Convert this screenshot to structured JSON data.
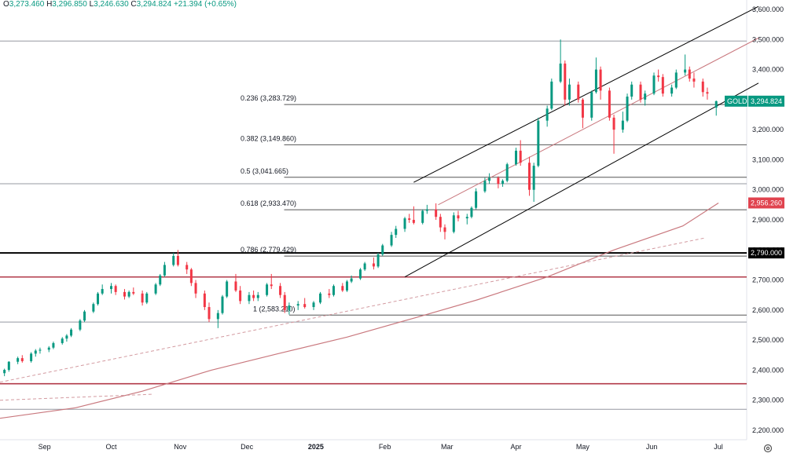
{
  "header": {
    "o_label": "O",
    "o_value": "3,273.460",
    "h_label": "H",
    "h_value": "3,296.850",
    "l_label": "L",
    "l_value": "3,246.630",
    "c_label": "C",
    "c_value": "3,294.824",
    "change": "+21.394 (+0.65%)"
  },
  "colors": {
    "up": "#089981",
    "down": "#f23645",
    "price_badge": "#089981",
    "ma_badge": "#e0434f",
    "level_badge": "#000000",
    "ma_line": "#c9787e",
    "support_line": "#b23a48",
    "grid_line": "#808080"
  },
  "chart_data": {
    "type": "candlestick",
    "symbol": "GOLD",
    "last_price": 3294.824,
    "last_price_label": "3,294.824",
    "ylim": [
      2180,
      3620
    ],
    "y_ticks": [
      2200,
      2300,
      2400,
      2500,
      2600,
      2700,
      2800,
      2900,
      3000,
      3100,
      3200,
      3300,
      3400,
      3500,
      3600
    ],
    "y_tick_labels": [
      "2,200.000",
      "2,300.000",
      "2,400.000",
      "2,500.000",
      "2,600.000",
      "2,700.000",
      "2,800.000",
      "2,900.000",
      "3,000.000",
      "3,100.000",
      "3,200.000",
      "3,300.000",
      "3,400.000",
      "3,500.000",
      "3,600.000"
    ],
    "x_labels": [
      {
        "date": "2024-09-01",
        "label": "Sep"
      },
      {
        "date": "2024-10-01",
        "label": "Oct"
      },
      {
        "date": "2024-11-01",
        "label": "Nov"
      },
      {
        "date": "2024-12-01",
        "label": "Dec"
      },
      {
        "date": "2025-01-01",
        "label": "2025"
      },
      {
        "date": "2025-02-01",
        "label": "Feb"
      },
      {
        "date": "2025-03-01",
        "label": "Mar"
      },
      {
        "date": "2025-04-01",
        "label": "Apr"
      },
      {
        "date": "2025-05-01",
        "label": "May"
      },
      {
        "date": "2025-06-01",
        "label": "Jun"
      },
      {
        "date": "2025-07-01",
        "label": "Jul"
      }
    ],
    "x_range": [
      "2024-08-12",
      "2025-07-19"
    ],
    "candles_ohlc": [
      [
        "2024-08-14",
        2390,
        2405,
        2380,
        2401
      ],
      [
        "2024-08-16",
        2401,
        2430,
        2395,
        2428
      ],
      [
        "2024-08-20",
        2428,
        2445,
        2420,
        2440
      ],
      [
        "2024-08-22",
        2440,
        2450,
        2425,
        2430
      ],
      [
        "2024-08-26",
        2430,
        2460,
        2425,
        2455
      ],
      [
        "2024-08-28",
        2455,
        2470,
        2445,
        2465
      ],
      [
        "2024-08-30",
        2465,
        2475,
        2455,
        2468
      ],
      [
        "2024-09-03",
        2468,
        2480,
        2460,
        2475
      ],
      [
        "2024-09-05",
        2475,
        2495,
        2470,
        2490
      ],
      [
        "2024-09-09",
        2490,
        2510,
        2485,
        2505
      ],
      [
        "2024-09-11",
        2505,
        2520,
        2495,
        2515
      ],
      [
        "2024-09-13",
        2515,
        2540,
        2510,
        2535
      ],
      [
        "2024-09-17",
        2535,
        2570,
        2530,
        2565
      ],
      [
        "2024-09-19",
        2565,
        2600,
        2560,
        2595
      ],
      [
        "2024-09-23",
        2595,
        2625,
        2590,
        2620
      ],
      [
        "2024-09-25",
        2620,
        2660,
        2615,
        2655
      ],
      [
        "2024-09-27",
        2655,
        2685,
        2650,
        2670
      ],
      [
        "2024-10-01",
        2670,
        2690,
        2655,
        2680
      ],
      [
        "2024-10-03",
        2680,
        2685,
        2650,
        2660
      ],
      [
        "2024-10-07",
        2660,
        2670,
        2635,
        2645
      ],
      [
        "2024-10-09",
        2645,
        2665,
        2640,
        2660
      ],
      [
        "2024-10-11",
        2660,
        2675,
        2650,
        2655
      ],
      [
        "2024-10-15",
        2655,
        2665,
        2615,
        2625
      ],
      [
        "2024-10-17",
        2625,
        2660,
        2620,
        2655
      ],
      [
        "2024-10-21",
        2655,
        2690,
        2650,
        2685
      ],
      [
        "2024-10-23",
        2685,
        2720,
        2680,
        2715
      ],
      [
        "2024-10-25",
        2715,
        2760,
        2710,
        2750
      ],
      [
        "2024-10-29",
        2750,
        2790,
        2745,
        2780
      ],
      [
        "2024-10-31",
        2780,
        2800,
        2745,
        2750
      ],
      [
        "2024-11-04",
        2750,
        2760,
        2720,
        2735
      ],
      [
        "2024-11-06",
        2735,
        2740,
        2680,
        2690
      ],
      [
        "2024-11-08",
        2690,
        2700,
        2640,
        2655
      ],
      [
        "2024-11-12",
        2655,
        2665,
        2600,
        2610
      ],
      [
        "2024-11-14",
        2610,
        2625,
        2560,
        2570
      ],
      [
        "2024-11-18",
        2570,
        2600,
        2540,
        2590
      ],
      [
        "2024-11-20",
        2590,
        2650,
        2585,
        2645
      ],
      [
        "2024-11-22",
        2645,
        2700,
        2640,
        2695
      ],
      [
        "2024-11-26",
        2695,
        2720,
        2660,
        2665
      ],
      [
        "2024-11-28",
        2665,
        2680,
        2620,
        2630
      ],
      [
        "2024-12-02",
        2630,
        2660,
        2620,
        2650
      ],
      [
        "2024-12-04",
        2650,
        2665,
        2630,
        2640
      ],
      [
        "2024-12-06",
        2640,
        2660,
        2630,
        2650
      ],
      [
        "2024-12-10",
        2650,
        2690,
        2645,
        2685
      ],
      [
        "2024-12-12",
        2685,
        2720,
        2670,
        2680
      ],
      [
        "2024-12-16",
        2680,
        2690,
        2640,
        2650
      ],
      [
        "2024-12-18",
        2650,
        2660,
        2590,
        2600
      ],
      [
        "2024-12-20",
        2600,
        2625,
        2585,
        2615
      ],
      [
        "2024-12-24",
        2615,
        2630,
        2600,
        2620
      ],
      [
        "2024-12-27",
        2620,
        2640,
        2605,
        2610
      ],
      [
        "2024-12-31",
        2610,
        2630,
        2600,
        2625
      ],
      [
        "2025-01-03",
        2625,
        2660,
        2620,
        2655
      ],
      [
        "2025-01-07",
        2655,
        2670,
        2640,
        2650
      ],
      [
        "2025-01-09",
        2650,
        2685,
        2645,
        2680
      ],
      [
        "2025-01-13",
        2680,
        2690,
        2660,
        2665
      ],
      [
        "2025-01-15",
        2665,
        2700,
        2660,
        2695
      ],
      [
        "2025-01-17",
        2695,
        2715,
        2690,
        2705
      ],
      [
        "2025-01-21",
        2705,
        2740,
        2700,
        2735
      ],
      [
        "2025-01-23",
        2735,
        2760,
        2730,
        2755
      ],
      [
        "2025-01-27",
        2755,
        2775,
        2735,
        2745
      ],
      [
        "2025-01-29",
        2745,
        2790,
        2740,
        2785
      ],
      [
        "2025-01-31",
        2785,
        2820,
        2780,
        2815
      ],
      [
        "2025-02-04",
        2815,
        2860,
        2810,
        2850
      ],
      [
        "2025-02-06",
        2850,
        2880,
        2840,
        2870
      ],
      [
        "2025-02-10",
        2870,
        2910,
        2860,
        2905
      ],
      [
        "2025-02-12",
        2905,
        2920,
        2890,
        2900
      ],
      [
        "2025-02-14",
        2900,
        2945,
        2885,
        2890
      ],
      [
        "2025-02-18",
        2890,
        2935,
        2885,
        2930
      ],
      [
        "2025-02-20",
        2930,
        2950,
        2920,
        2935
      ],
      [
        "2025-02-24",
        2935,
        2955,
        2900,
        2910
      ],
      [
        "2025-02-26",
        2910,
        2920,
        2860,
        2875
      ],
      [
        "2025-02-28",
        2875,
        2885,
        2835,
        2860
      ],
      [
        "2025-03-04",
        2860,
        2925,
        2855,
        2915
      ],
      [
        "2025-03-06",
        2915,
        2930,
        2895,
        2905
      ],
      [
        "2025-03-10",
        2905,
        2920,
        2885,
        2910
      ],
      [
        "2025-03-12",
        2910,
        2945,
        2905,
        2940
      ],
      [
        "2025-03-14",
        2940,
        3005,
        2935,
        2995
      ],
      [
        "2025-03-18",
        2995,
        3040,
        2990,
        3030
      ],
      [
        "2025-03-20",
        3030,
        3055,
        3020,
        3040
      ],
      [
        "2025-03-24",
        3040,
        3045,
        3005,
        3020
      ],
      [
        "2025-03-26",
        3020,
        3035,
        3010,
        3030
      ],
      [
        "2025-03-28",
        3030,
        3090,
        3025,
        3085
      ],
      [
        "2025-04-01",
        3085,
        3140,
        3080,
        3130
      ],
      [
        "2025-04-03",
        3130,
        3165,
        3080,
        3090
      ],
      [
        "2025-04-07",
        3090,
        3110,
        2980,
        3000
      ],
      [
        "2025-04-09",
        3000,
        3090,
        2960,
        3080
      ],
      [
        "2025-04-11",
        3080,
        3240,
        3075,
        3230
      ],
      [
        "2025-04-15",
        3230,
        3280,
        3210,
        3270
      ],
      [
        "2025-04-17",
        3270,
        3370,
        3265,
        3360
      ],
      [
        "2025-04-21",
        3360,
        3500,
        3355,
        3420
      ],
      [
        "2025-04-23",
        3420,
        3430,
        3280,
        3300
      ],
      [
        "2025-04-25",
        3300,
        3370,
        3280,
        3350
      ],
      [
        "2025-04-29",
        3350,
        3360,
        3290,
        3300
      ],
      [
        "2025-05-01",
        3300,
        3305,
        3205,
        3240
      ],
      [
        "2025-05-05",
        3240,
        3330,
        3230,
        3325
      ],
      [
        "2025-05-07",
        3325,
        3440,
        3320,
        3400
      ],
      [
        "2025-05-09",
        3400,
        3410,
        3300,
        3330
      ],
      [
        "2025-05-13",
        3330,
        3340,
        3230,
        3240
      ],
      [
        "2025-05-15",
        3240,
        3250,
        3120,
        3200
      ],
      [
        "2025-05-19",
        3200,
        3260,
        3190,
        3230
      ],
      [
        "2025-05-21",
        3230,
        3320,
        3225,
        3310
      ],
      [
        "2025-05-23",
        3310,
        3360,
        3300,
        3350
      ],
      [
        "2025-05-27",
        3350,
        3360,
        3290,
        3300
      ],
      [
        "2025-05-29",
        3300,
        3330,
        3280,
        3320
      ],
      [
        "2025-06-02",
        3320,
        3390,
        3315,
        3380
      ],
      [
        "2025-06-04",
        3380,
        3400,
        3360,
        3375
      ],
      [
        "2025-06-06",
        3375,
        3385,
        3310,
        3320
      ],
      [
        "2025-06-10",
        3320,
        3350,
        3310,
        3340
      ],
      [
        "2025-06-12",
        3340,
        3400,
        3335,
        3390
      ],
      [
        "2025-06-16",
        3390,
        3450,
        3380,
        3400
      ],
      [
        "2025-06-18",
        3400,
        3410,
        3360,
        3370
      ],
      [
        "2025-06-20",
        3370,
        3390,
        3340,
        3360
      ],
      [
        "2025-06-24",
        3360,
        3370,
        3310,
        3325
      ],
      [
        "2025-06-26",
        3325,
        3340,
        3300,
        3320
      ],
      [
        "2025-06-30",
        3273.46,
        3296.85,
        3246.63,
        3294.824
      ]
    ],
    "fibonacci": [
      {
        "ratio": "0.236",
        "value": 3283.729,
        "label": "0.236 (3,283.729)"
      },
      {
        "ratio": "0.382",
        "value": 3149.86,
        "label": "0.382 (3,149.860)"
      },
      {
        "ratio": "0.5",
        "value": 3041.665,
        "label": "0.5 (3,041.665)"
      },
      {
        "ratio": "0.618",
        "value": 2933.47,
        "label": "0.618 (2,933.470)"
      },
      {
        "ratio": "0.786",
        "value": 2779.429,
        "label": "0.786 (2,779.429)"
      },
      {
        "ratio": "1",
        "value": 2583.21,
        "label": "1 (2,583.210)"
      }
    ],
    "horizontal_levels": [
      {
        "value": 3495,
        "style": "gray"
      },
      {
        "value": 3020,
        "style": "gray"
      },
      {
        "value": 2790,
        "style": "black",
        "label": "2,790.000"
      },
      {
        "value": 2710,
        "style": "support"
      },
      {
        "value": 2560,
        "style": "gray"
      },
      {
        "value": 2355,
        "style": "support"
      },
      {
        "value": 2270,
        "style": "gray"
      }
    ],
    "moving_average": {
      "label": "2,956.260",
      "points": [
        [
          "2024-08-12",
          2240
        ],
        [
          "2024-09-15",
          2275
        ],
        [
          "2024-10-15",
          2330
        ],
        [
          "2024-11-15",
          2400
        ],
        [
          "2024-12-15",
          2455
        ],
        [
          "2025-01-15",
          2510
        ],
        [
          "2025-02-15",
          2575
        ],
        [
          "2025-03-15",
          2635
        ],
        [
          "2025-04-15",
          2710
        ],
        [
          "2025-05-15",
          2800
        ],
        [
          "2025-06-15",
          2880
        ],
        [
          "2025-07-01",
          2956.26
        ]
      ]
    },
    "dashed_trendlines": [
      {
        "points": [
          [
            "2024-08-12",
            2360
          ],
          [
            "2025-06-25",
            2840
          ]
        ]
      },
      {
        "points": [
          [
            "2024-08-12",
            2300
          ],
          [
            "2024-10-20",
            2320
          ]
        ]
      }
    ],
    "channel": [
      {
        "points": [
          [
            "2025-02-14",
            3025
          ],
          [
            "2025-07-19",
            3610
          ]
        ]
      },
      {
        "points": [
          [
            "2025-02-10",
            2710
          ],
          [
            "2025-07-19",
            3355
          ]
        ]
      }
    ],
    "channel_midline": {
      "points": [
        [
          "2025-02-25",
          2950
        ],
        [
          "2025-07-19",
          3505
        ]
      ]
    }
  }
}
